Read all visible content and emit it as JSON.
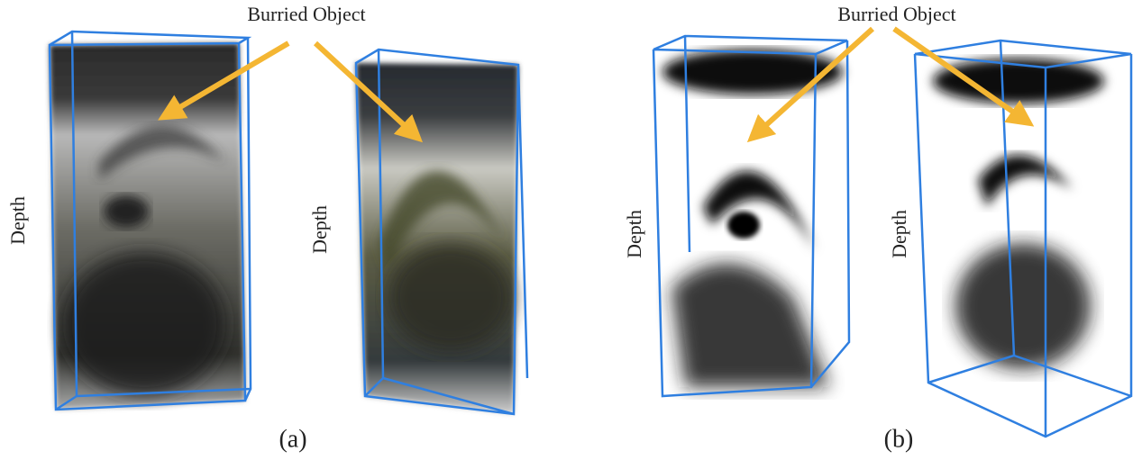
{
  "panels": [
    {
      "annotation": "Burried Object",
      "volumes": [
        {
          "axis_label": "Depth"
        },
        {
          "axis_label": "Depth"
        }
      ],
      "caption": "(a)"
    },
    {
      "annotation": "Burried Object",
      "volumes": [
        {
          "axis_label": "Depth"
        },
        {
          "axis_label": "Depth"
        }
      ],
      "caption": "(b)"
    }
  ]
}
